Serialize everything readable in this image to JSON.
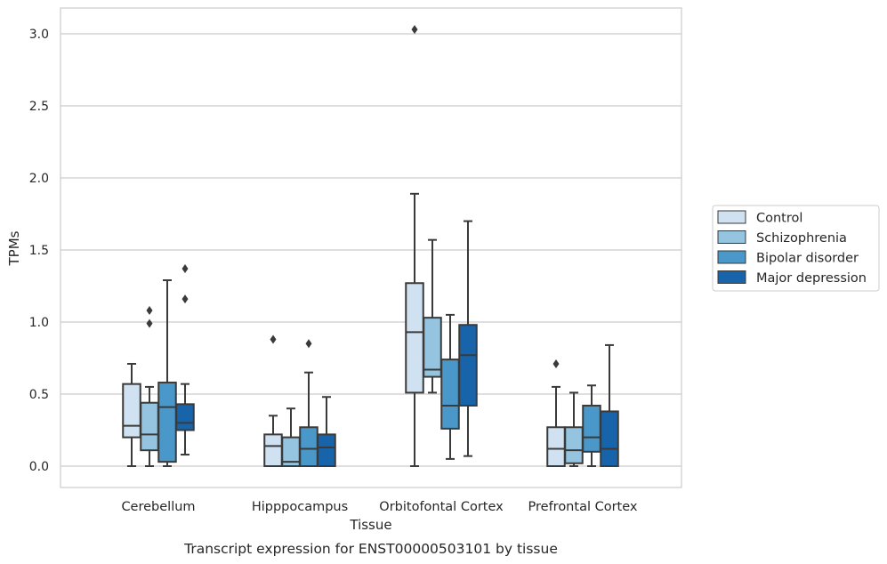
{
  "chart_data": {
    "type": "boxplot",
    "title": "Transcript expression for ENST00000503101 by tissue",
    "xlabel": "Tissue",
    "ylabel": "TPMs",
    "ylim": [
      -0.15,
      3.18
    ],
    "yticks": [
      "0.0",
      "0.5",
      "1.0",
      "1.5",
      "2.0",
      "2.5",
      "3.0"
    ],
    "categories": [
      "Cerebellum",
      "Hipppocampus",
      "Orbitofontal Cortex",
      "Prefrontal Cortex"
    ],
    "grid": "horizontal",
    "legend_position": "right, outside plot",
    "series": [
      {
        "name": "Control",
        "color": "#d0e1f2",
        "boxes": [
          {
            "whisker_low": 0.0,
            "q1": 0.2,
            "median": 0.28,
            "q3": 0.57,
            "whisker_high": 0.71,
            "outliers": []
          },
          {
            "whisker_low": 0.0,
            "q1": 0.0,
            "median": 0.14,
            "q3": 0.22,
            "whisker_high": 0.35,
            "outliers": [
              0.88
            ]
          },
          {
            "whisker_low": 0.0,
            "q1": 0.51,
            "median": 0.93,
            "q3": 1.27,
            "whisker_high": 1.89,
            "outliers": [
              3.03
            ]
          },
          {
            "whisker_low": 0.0,
            "q1": 0.0,
            "median": 0.12,
            "q3": 0.27,
            "whisker_high": 0.55,
            "outliers": [
              0.71
            ]
          }
        ]
      },
      {
        "name": "Schizophrenia",
        "color": "#94c4df",
        "boxes": [
          {
            "whisker_low": 0.0,
            "q1": 0.11,
            "median": 0.22,
            "q3": 0.44,
            "whisker_high": 0.55,
            "outliers": [
              0.99,
              1.08
            ]
          },
          {
            "whisker_low": 0.0,
            "q1": 0.0,
            "median": 0.03,
            "q3": 0.2,
            "whisker_high": 0.4,
            "outliers": []
          },
          {
            "whisker_low": 0.51,
            "q1": 0.62,
            "median": 0.67,
            "q3": 1.03,
            "whisker_high": 1.57,
            "outliers": []
          },
          {
            "whisker_low": 0.0,
            "q1": 0.02,
            "median": 0.11,
            "q3": 0.27,
            "whisker_high": 0.51,
            "outliers": []
          }
        ]
      },
      {
        "name": "Bipolar disorder",
        "color": "#4a98c9",
        "boxes": [
          {
            "whisker_low": 0.0,
            "q1": 0.03,
            "median": 0.41,
            "q3": 0.58,
            "whisker_high": 1.29,
            "outliers": []
          },
          {
            "whisker_low": 0.0,
            "q1": 0.0,
            "median": 0.12,
            "q3": 0.27,
            "whisker_high": 0.65,
            "outliers": [
              0.85
            ]
          },
          {
            "whisker_low": 0.05,
            "q1": 0.26,
            "median": 0.42,
            "q3": 0.74,
            "whisker_high": 1.05,
            "outliers": []
          },
          {
            "whisker_low": 0.0,
            "q1": 0.1,
            "median": 0.2,
            "q3": 0.42,
            "whisker_high": 0.56,
            "outliers": []
          }
        ]
      },
      {
        "name": "Major depression",
        "color": "#1764ab",
        "boxes": [
          {
            "whisker_low": 0.08,
            "q1": 0.25,
            "median": 0.3,
            "q3": 0.43,
            "whisker_high": 0.57,
            "outliers": [
              1.16,
              1.37
            ]
          },
          {
            "whisker_low": 0.0,
            "q1": 0.0,
            "median": 0.13,
            "q3": 0.22,
            "whisker_high": 0.48,
            "outliers": []
          },
          {
            "whisker_low": 0.07,
            "q1": 0.42,
            "median": 0.77,
            "q3": 0.98,
            "whisker_high": 1.7,
            "outliers": []
          },
          {
            "whisker_low": 0.0,
            "q1": 0.0,
            "median": 0.12,
            "q3": 0.38,
            "whisker_high": 0.84,
            "outliers": []
          }
        ]
      }
    ]
  }
}
